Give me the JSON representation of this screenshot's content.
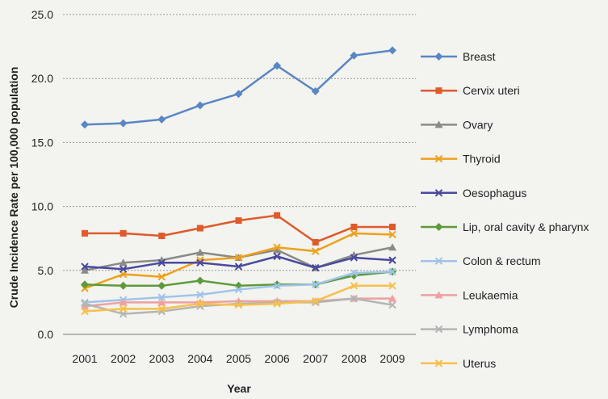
{
  "chart_data": {
    "type": "line",
    "title": "",
    "xlabel": "Year",
    "ylabel": "Crude Incidence Rate per 100,000 population",
    "x": [
      2001,
      2002,
      2003,
      2004,
      2005,
      2006,
      2007,
      2008,
      2009
    ],
    "ylim": [
      0,
      25
    ],
    "yticks": [
      "0.0",
      "5.0",
      "10.0",
      "15.0",
      "20.0",
      "25.0"
    ],
    "grid": "horizontal-dashed",
    "legend_position": "right",
    "series": [
      {
        "name": "Breast",
        "color": "#5b86c5",
        "marker": "diamond",
        "values": [
          16.4,
          16.5,
          16.8,
          17.9,
          18.8,
          21.0,
          19.0,
          21.8,
          22.2
        ]
      },
      {
        "name": "Cervix uteri",
        "color": "#e05a2a",
        "marker": "square",
        "values": [
          7.9,
          7.9,
          7.7,
          8.3,
          8.9,
          9.3,
          7.2,
          8.4,
          8.4
        ]
      },
      {
        "name": "Ovary",
        "color": "#8a8a86",
        "marker": "triangle",
        "values": [
          5.0,
          5.6,
          5.8,
          6.4,
          6.0,
          6.6,
          5.2,
          6.2,
          6.8
        ]
      },
      {
        "name": "Thyroid",
        "color": "#f0a018",
        "marker": "x",
        "values": [
          3.6,
          4.7,
          4.5,
          5.8,
          6.0,
          6.8,
          6.5,
          7.9,
          7.8
        ]
      },
      {
        "name": "Oesophagus",
        "color": "#4a4aa0",
        "marker": "x",
        "values": [
          5.3,
          5.1,
          5.6,
          5.6,
          5.3,
          6.1,
          5.2,
          6.0,
          5.8
        ]
      },
      {
        "name": "Lip, oral cavity & pharynx",
        "color": "#5d9a3a",
        "marker": "diamond",
        "values": [
          3.9,
          3.8,
          3.8,
          4.2,
          3.8,
          3.9,
          3.9,
          4.6,
          4.9
        ]
      },
      {
        "name": "Colon & rectum",
        "color": "#9ec4e8",
        "marker": "x",
        "values": [
          2.5,
          2.7,
          2.9,
          3.1,
          3.5,
          3.8,
          3.9,
          4.8,
          4.9
        ]
      },
      {
        "name": "Leukaemia",
        "color": "#f0a0a0",
        "marker": "triangle",
        "values": [
          2.2,
          2.5,
          2.5,
          2.5,
          2.6,
          2.6,
          2.6,
          2.8,
          2.8
        ]
      },
      {
        "name": "Lymphoma",
        "color": "#b4b4b4",
        "marker": "x",
        "values": [
          2.4,
          1.6,
          1.8,
          2.2,
          2.4,
          2.5,
          2.5,
          2.8,
          2.3
        ]
      },
      {
        "name": "Uterus",
        "color": "#f6c04a",
        "marker": "x",
        "values": [
          1.8,
          2.0,
          2.0,
          2.4,
          2.3,
          2.4,
          2.6,
          3.8,
          3.8
        ]
      }
    ]
  }
}
